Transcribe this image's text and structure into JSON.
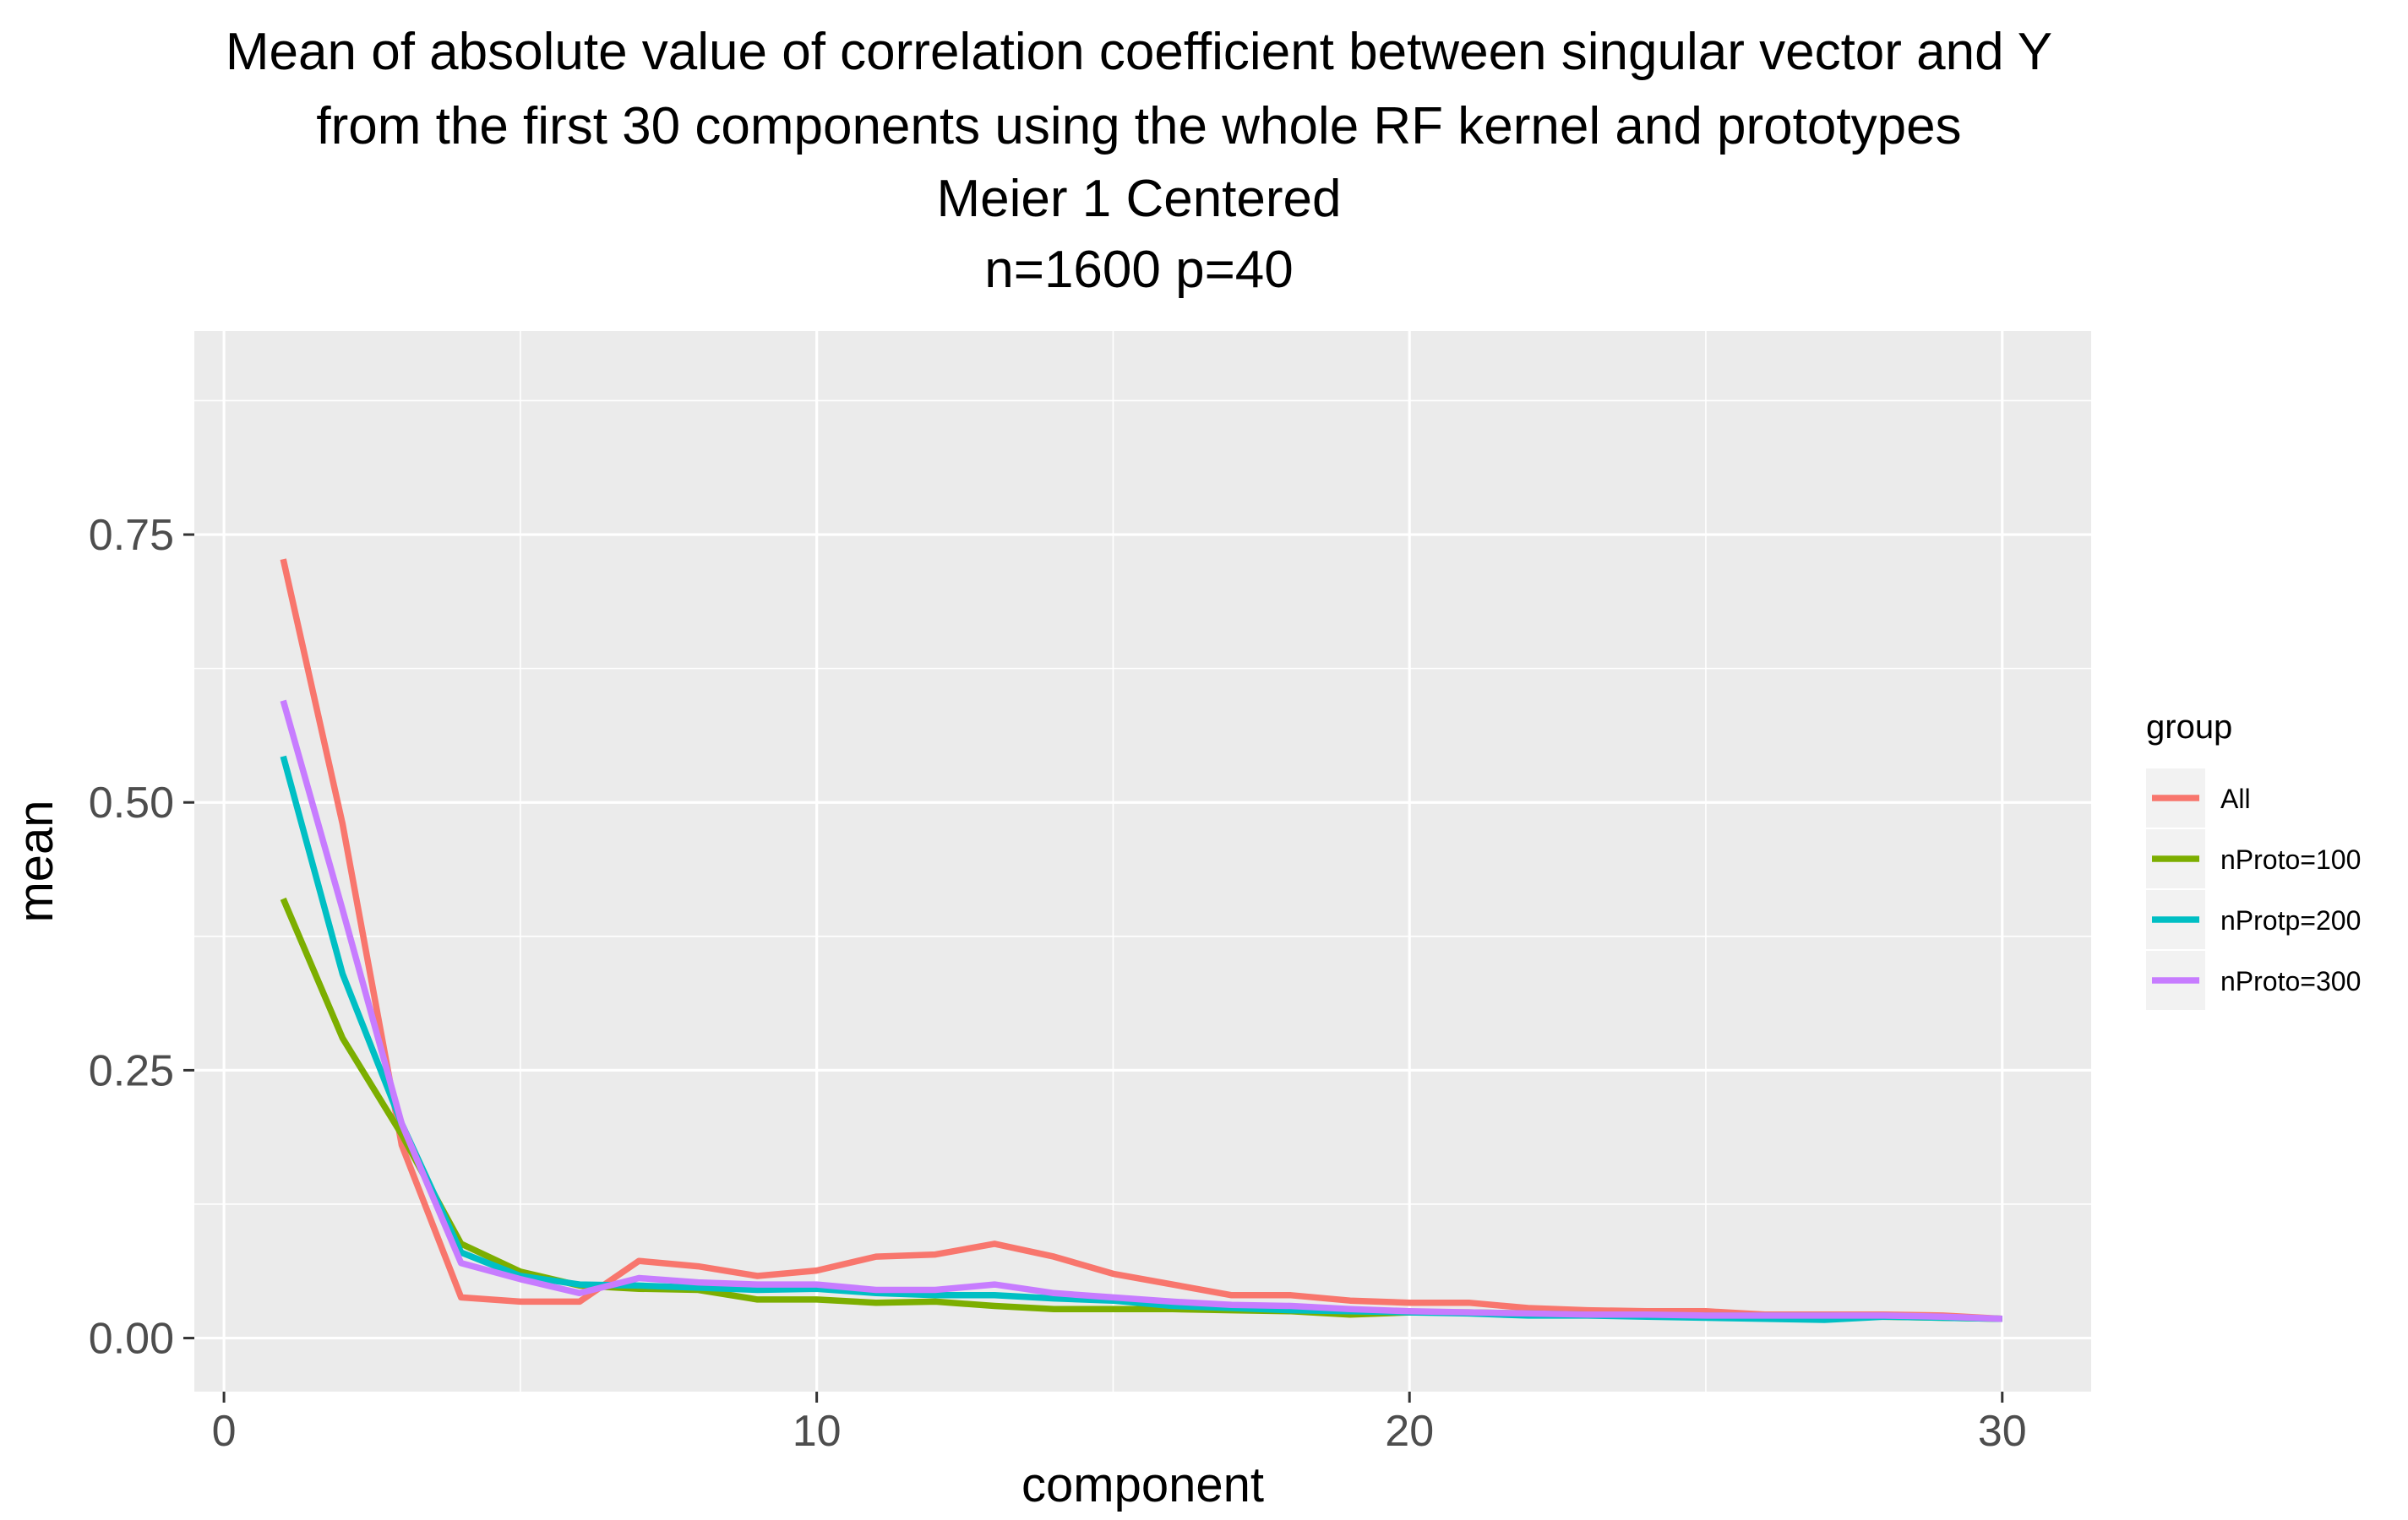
{
  "chart_data": {
    "type": "line",
    "title_lines": [
      "Mean of absolute value of correlation coefficient between singular vector and Y",
      "from the first 30 components using the whole RF kernel and prototypes",
      "Meier 1 Centered",
      "n=1600 p=40"
    ],
    "xlabel": "component",
    "ylabel": "mean",
    "xlim": [
      -0.5,
      31.5
    ],
    "ylim": [
      -0.05,
      0.94
    ],
    "x_ticks": [
      0,
      10,
      20,
      30
    ],
    "x_tick_labels": [
      "0",
      "10",
      "20",
      "30"
    ],
    "y_ticks": [
      0.0,
      0.25,
      0.5,
      0.75
    ],
    "y_tick_labels": [
      "0.00",
      "0.25",
      "0.50",
      "0.75"
    ],
    "grid": true,
    "legend_title": "group",
    "legend_position": "right",
    "x": [
      1,
      2,
      3,
      4,
      5,
      6,
      7,
      8,
      9,
      10,
      11,
      12,
      13,
      14,
      15,
      16,
      17,
      18,
      19,
      20,
      21,
      22,
      23,
      24,
      25,
      26,
      27,
      28,
      29,
      30
    ],
    "series": [
      {
        "name": "All",
        "color": "#F8766D",
        "values": [
          0.727,
          0.48,
          0.18,
          0.038,
          0.034,
          0.034,
          0.072,
          0.067,
          0.058,
          0.063,
          0.076,
          0.078,
          0.088,
          0.076,
          0.06,
          0.05,
          0.04,
          0.04,
          0.035,
          0.033,
          0.033,
          0.028,
          0.026,
          0.025,
          0.025,
          0.022,
          0.022,
          0.022,
          0.021,
          0.018
        ]
      },
      {
        "name": "nProto=100",
        "color": "#7CAE00",
        "values": [
          0.41,
          0.28,
          0.19,
          0.088,
          0.062,
          0.049,
          0.046,
          0.045,
          0.036,
          0.036,
          0.033,
          0.034,
          0.03,
          0.027,
          0.027,
          0.027,
          0.026,
          0.025,
          0.022,
          0.024,
          0.024,
          0.023,
          0.022,
          0.021,
          0.021,
          0.021,
          0.021,
          0.02,
          0.019,
          0.018
        ]
      },
      {
        "name": "nProtp=200",
        "color": "#00BFC4",
        "values": [
          0.543,
          0.34,
          0.2,
          0.08,
          0.058,
          0.05,
          0.049,
          0.047,
          0.045,
          0.046,
          0.042,
          0.04,
          0.04,
          0.037,
          0.035,
          0.03,
          0.028,
          0.026,
          0.025,
          0.024,
          0.023,
          0.021,
          0.021,
          0.02,
          0.019,
          0.018,
          0.017,
          0.02,
          0.019,
          0.018
        ]
      },
      {
        "name": "nProto=300",
        "color": "#C77CFF",
        "values": [
          0.595,
          0.4,
          0.2,
          0.07,
          0.055,
          0.042,
          0.056,
          0.052,
          0.05,
          0.05,
          0.045,
          0.045,
          0.05,
          0.042,
          0.038,
          0.034,
          0.031,
          0.03,
          0.027,
          0.025,
          0.024,
          0.023,
          0.022,
          0.022,
          0.021,
          0.021,
          0.021,
          0.021,
          0.02,
          0.018
        ]
      }
    ]
  }
}
